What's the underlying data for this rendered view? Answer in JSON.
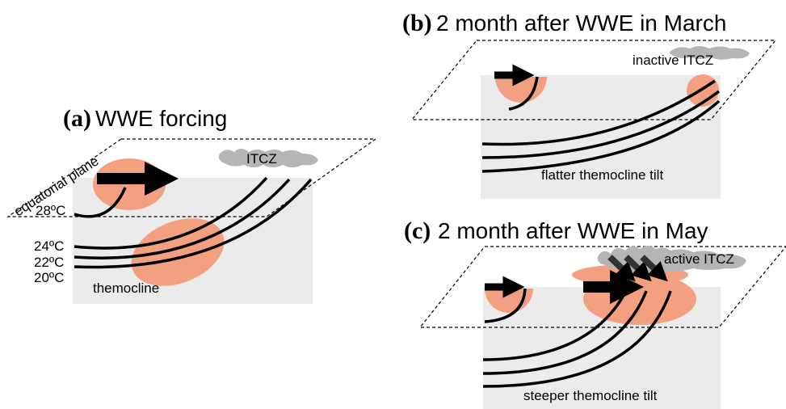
{
  "panels": [
    {
      "label": "(a)",
      "title": "WWE forcing",
      "plane_label": "equatorial plane",
      "itcz": "ITCZ",
      "isotherms": [
        "28ºC",
        "24ºC",
        "22ºC",
        "20ºC"
      ],
      "note": "themocline"
    },
    {
      "label": "(b)",
      "title": "2 month after WWE in March",
      "itcz": "inactive ITCZ",
      "note": "flatter themocline tilt"
    },
    {
      "label": "(c)",
      "title": "2 month after WWE in May",
      "itcz": "active ITCZ",
      "note": "steeper themocline tilt"
    }
  ]
}
